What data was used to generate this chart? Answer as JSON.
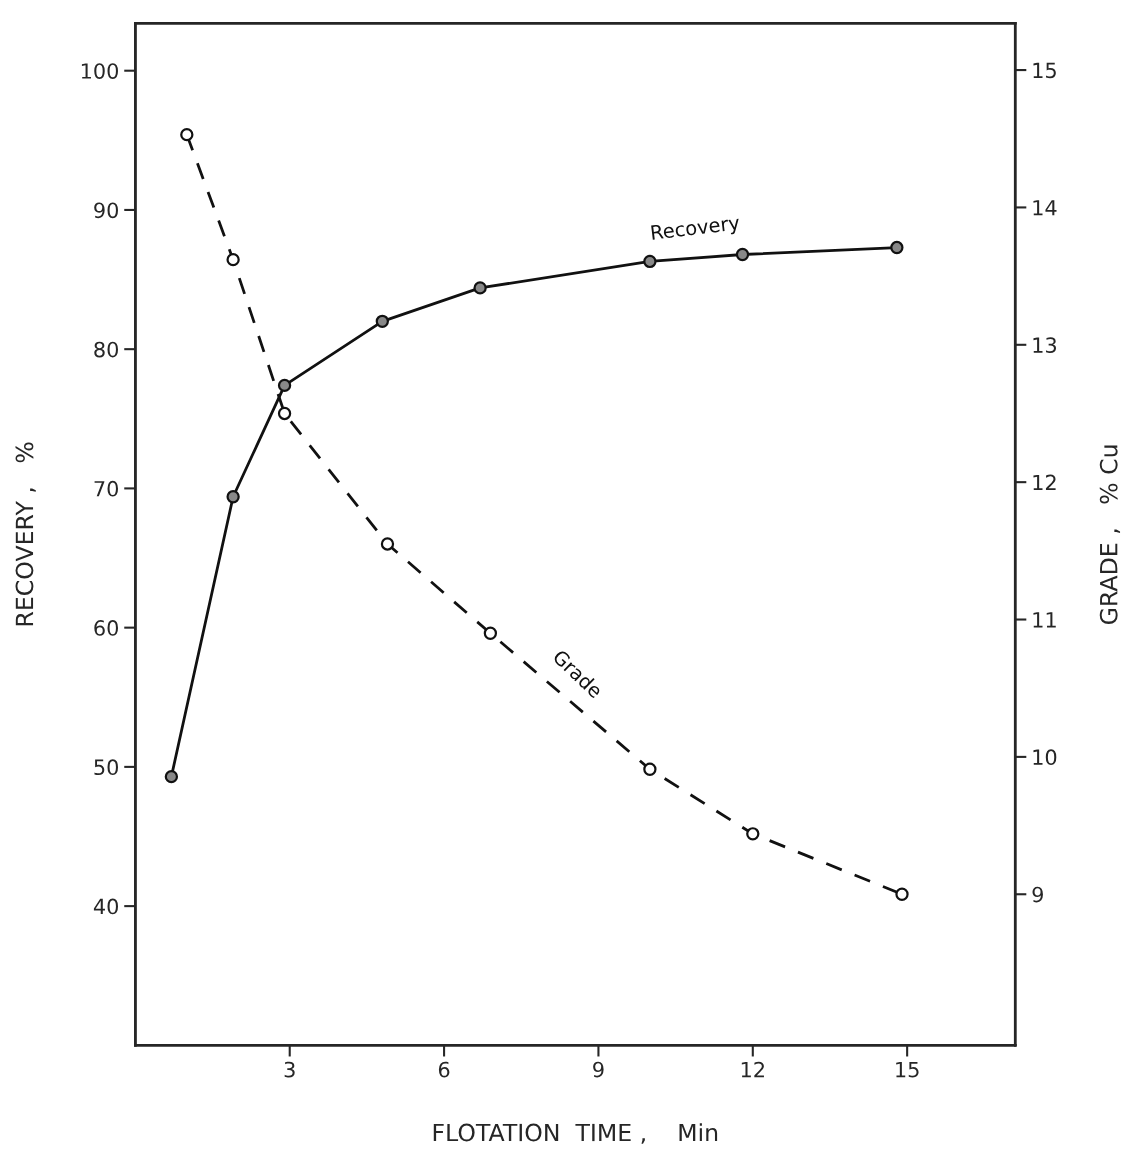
{
  "chart_data": {
    "type": "line",
    "xlabel": "FLOTATION  TIME ,    Min",
    "ylabel": "RECOVERY ,   %",
    "y2label": "GRADE ,   % Cu",
    "xlim": [
      0,
      17.1
    ],
    "xticks": [
      3,
      6,
      9,
      12,
      15
    ],
    "ylim": [
      30,
      103.4
    ],
    "yticks": [
      40,
      50,
      60,
      70,
      80,
      90,
      100
    ],
    "y2lim": [
      7.9,
      15.34
    ],
    "y2ticks": [
      9,
      10,
      11,
      12,
      13,
      14,
      15
    ],
    "marker": "circle",
    "grid": false,
    "legend": false,
    "series": [
      {
        "name": "Recovery",
        "color": "#111111",
        "line_style": "solid",
        "x": [
          0.7,
          1.9,
          2.9,
          4.8,
          6.7,
          10.0,
          11.8,
          14.8
        ],
        "values": [
          49.3,
          69.4,
          77.4,
          82.0,
          84.4,
          86.3,
          86.8,
          87.3
        ]
      },
      {
        "name": "Grade",
        "color": "#111111",
        "line_style": "dashed",
        "axis": "y2",
        "x": [
          1.0,
          1.9,
          2.9,
          4.9,
          6.9,
          10.0,
          12.0,
          14.9
        ],
        "values": [
          14.53,
          13.62,
          12.5,
          11.55,
          10.9,
          9.91,
          9.44,
          9.0
        ]
      }
    ]
  }
}
